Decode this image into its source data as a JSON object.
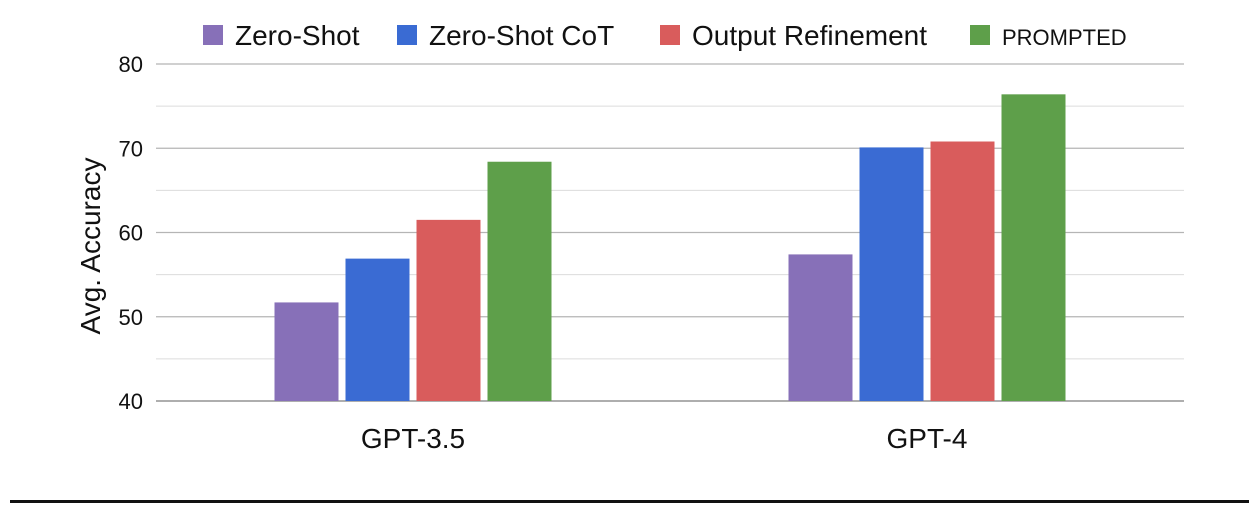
{
  "chart_data": {
    "type": "bar",
    "categories": [
      "GPT-3.5",
      "GPT-4"
    ],
    "series": [
      {
        "name": "Zero-Shot",
        "color": "#8770b8",
        "values": [
          51.7,
          57.4
        ]
      },
      {
        "name": "Zero-Shot CoT",
        "color": "#3a6bd3",
        "values": [
          56.9,
          70.1
        ]
      },
      {
        "name": "Output Refinement",
        "color": "#d95c5c",
        "values": [
          61.5,
          70.8
        ]
      },
      {
        "name": "PROMPTED",
        "color": "#5e9f4a",
        "values": [
          68.4,
          76.4
        ]
      }
    ],
    "ylabel": "Avg. Accuracy",
    "xlabel": "",
    "ylim": [
      40,
      80
    ],
    "yticks": [
      40,
      50,
      60,
      70,
      80
    ],
    "grid": true,
    "legend_position": "top"
  }
}
